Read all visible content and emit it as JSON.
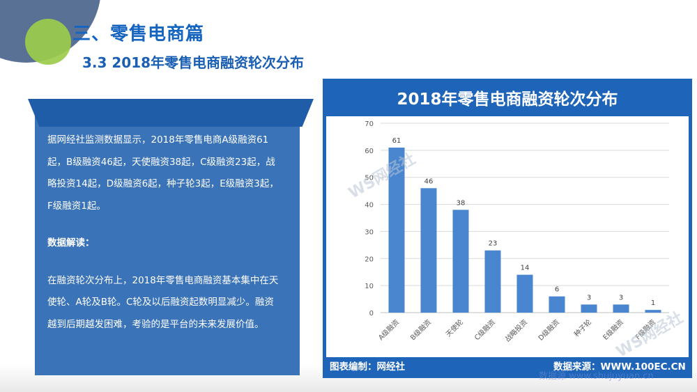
{
  "slide": {
    "title": "三、零售电商篇",
    "subtitle": "3.3 2018年零售电商融资轮次分布"
  },
  "panel": {
    "summary": "据网经社监测数据显示，2018年零售电商A级融资61起，B级融资46起，天使融资38起，C级融资23起，战略投资14起，D级融资6起，种子轮3起，E级融资3起，F级融资1起。",
    "heading": "数据解读：",
    "analysis": "在融资轮次分布上，2018年零售电商融资基本集中在天使轮、A轮及B轮。C轮及以后融资起数明显减少。融资越到后期越发困难，考验的是平台的未来发展价值。"
  },
  "chart_header": {
    "footer_left": "图表编制：网经社",
    "footer_right": "数据来源：WWW.100EC.CN"
  },
  "watermarks": {
    "logo_text": "WS网经社",
    "bottom": "数据源 www.shujuyuan.cn"
  },
  "colors": {
    "title_blue": "#1565c0",
    "panel_blue": "#3a73b7",
    "chart_frame": "#1e64b8",
    "bar_blue": "#4a86cf"
  },
  "chart_data": {
    "type": "bar",
    "title": "2018年零售电商融资轮次分布",
    "categories": [
      "A级融资",
      "B级融资",
      "天使轮",
      "C级融资",
      "战略投资",
      "D级融资",
      "种子轮",
      "E级融资",
      "F级融资"
    ],
    "values": [
      61,
      46,
      38,
      23,
      14,
      6,
      3,
      3,
      1
    ],
    "ylim": [
      0,
      70
    ],
    "yticks": [
      0,
      10,
      20,
      30,
      40,
      50,
      60,
      70
    ],
    "grid": true,
    "data_labels": true,
    "legend": "none"
  }
}
